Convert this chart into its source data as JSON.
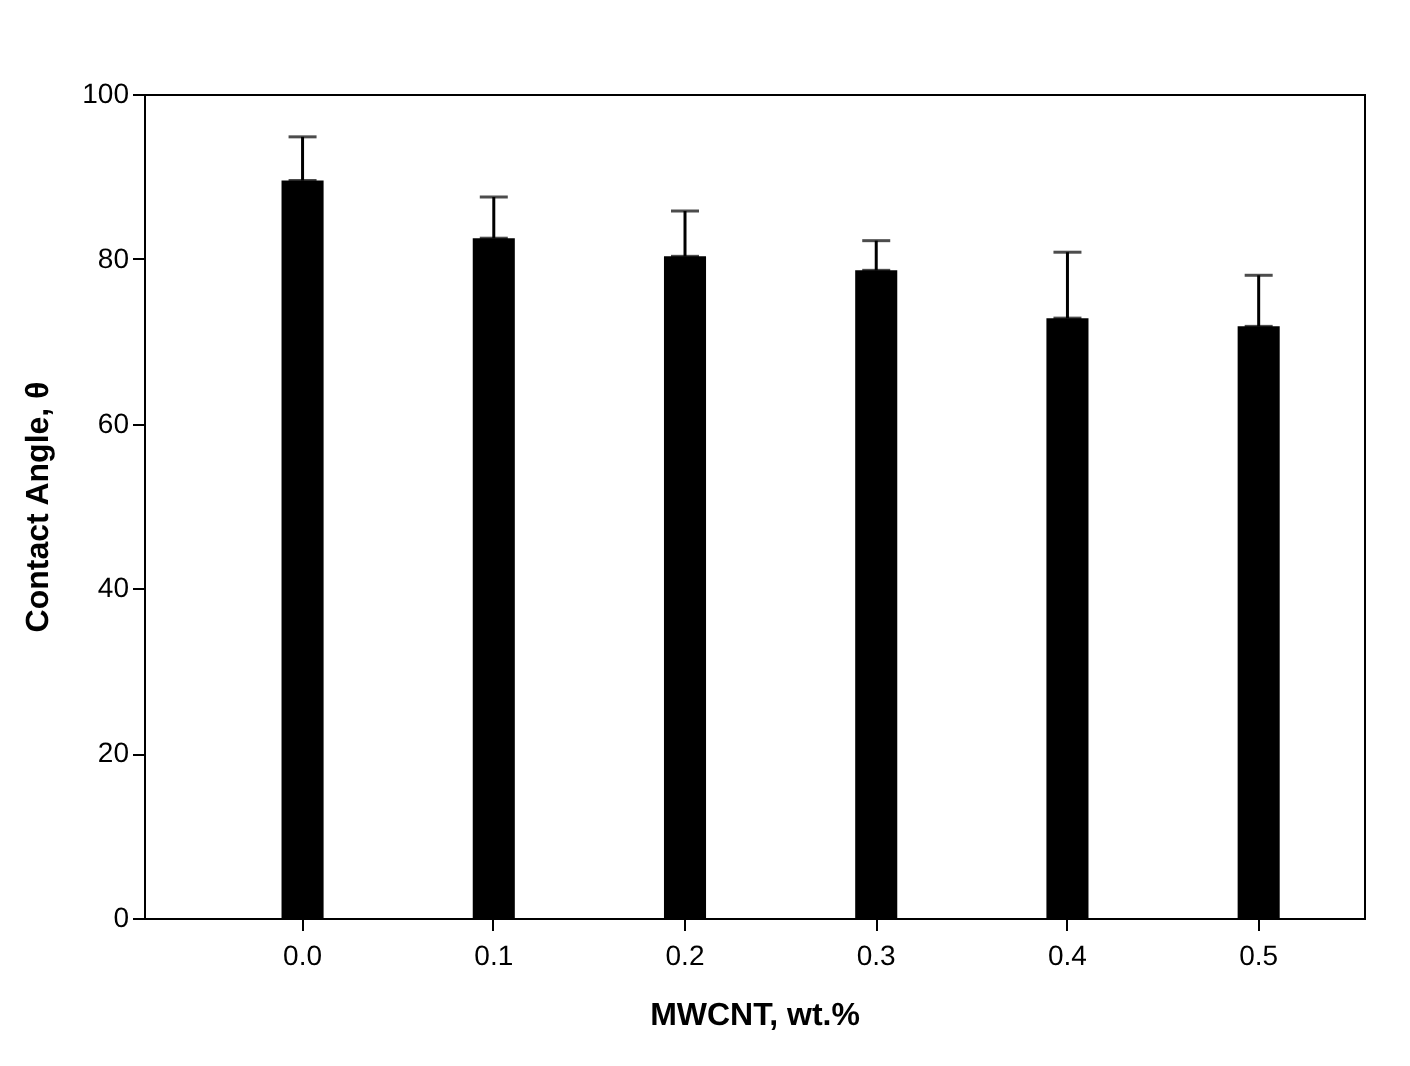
{
  "chart_data": {
    "type": "bar",
    "xlabel": "MWCNT, wt.%",
    "ylabel": "Contact Angle, θ",
    "categories": [
      "0.0",
      "0.1",
      "0.2",
      "0.3",
      "0.4",
      "0.5"
    ],
    "values": [
      89.5,
      82.5,
      80.3,
      78.6,
      72.8,
      71.8
    ],
    "errors": [
      [
        89.5,
        94.8
      ],
      [
        82.5,
        87.5
      ],
      [
        80.3,
        85.8
      ],
      [
        78.6,
        82.2
      ],
      [
        72.8,
        80.8
      ],
      [
        71.8,
        78
      ]
    ],
    "color": "#000000",
    "ylim": [
      0,
      100
    ],
    "yticks": [
      0,
      20,
      40,
      60,
      80,
      100
    ],
    "grid": false
  }
}
